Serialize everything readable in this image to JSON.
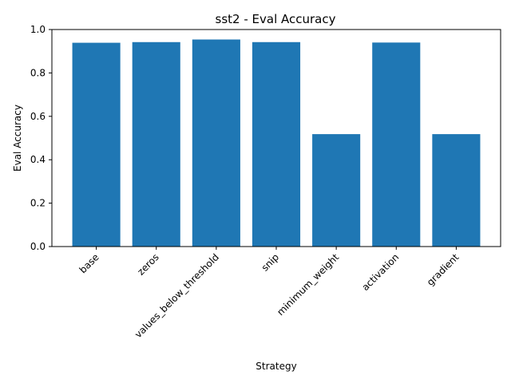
{
  "chart_data": {
    "type": "bar",
    "title": "sst2 - Eval Accuracy",
    "xlabel": "Strategy",
    "ylabel": "Eval Accuracy",
    "categories": [
      "base",
      "zeros",
      "values_below_threshold",
      "snip",
      "minimum_weight",
      "activation",
      "gradient"
    ],
    "values": [
      0.939,
      0.942,
      0.954,
      0.942,
      0.518,
      0.94,
      0.518
    ],
    "ylim": [
      0,
      1.0
    ],
    "yticks": [
      "0.0",
      "0.2",
      "0.4",
      "0.6",
      "0.8",
      "1.0"
    ],
    "grid": false,
    "bar_color": "#1f77b4"
  }
}
